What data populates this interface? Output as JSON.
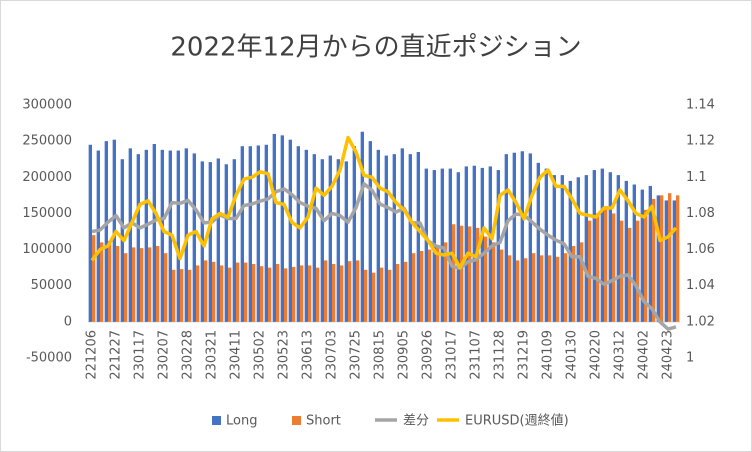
{
  "chart_data": {
    "type": "bar_line",
    "title": "2022年12月からの直近ポジション",
    "categories": [
      "221206",
      null,
      null,
      "221227",
      null,
      null,
      "230117",
      null,
      null,
      "230207",
      null,
      null,
      "230228",
      null,
      null,
      "230321",
      null,
      null,
      "230411",
      null,
      null,
      "230502",
      null,
      null,
      "230523",
      null,
      null,
      "230613",
      null,
      null,
      "230703",
      null,
      null,
      "230725",
      null,
      null,
      "230815",
      null,
      null,
      "230905",
      null,
      null,
      "230926",
      null,
      null,
      "231017",
      null,
      null,
      "231107",
      null,
      null,
      "231128",
      null,
      null,
      "231219",
      null,
      null,
      "240109",
      null,
      null,
      "240130",
      null,
      null,
      "240220",
      null,
      null,
      "240312",
      null,
      null,
      "240402",
      null,
      null,
      "240423",
      null
    ],
    "series": [
      {
        "name": "Long",
        "color": "#4472c4",
        "kind": "bar",
        "values": [
          245000,
          237000,
          250000,
          252000,
          225000,
          240000,
          232000,
          238000,
          246000,
          238000,
          237000,
          237000,
          240000,
          233000,
          222000,
          221000,
          226000,
          218000,
          225000,
          243000,
          243000,
          244000,
          245000,
          260000,
          258000,
          252000,
          243000,
          238000,
          232000,
          225000,
          230000,
          225000,
          222000,
          243000,
          263000,
          250000,
          238000,
          230000,
          232000,
          240000,
          232000,
          235000,
          212000,
          210000,
          212000,
          212000,
          207000,
          215000,
          216000,
          213000,
          215000,
          210000,
          232000,
          234000,
          236000,
          233000,
          220000,
          212000,
          203000,
          203000,
          195000,
          200000,
          203000,
          210000,
          212000,
          207000,
          203000,
          195000,
          190000,
          183000,
          188000,
          175000,
          168000,
          168000
        ]
      },
      {
        "name": "Short",
        "color": "#ed7d31",
        "kind": "bar",
        "values": [
          120000,
          110000,
          112000,
          105000,
          95000,
          103000,
          102000,
          103000,
          105000,
          95000,
          72000,
          73000,
          72000,
          78000,
          85000,
          83000,
          78000,
          75000,
          82000,
          82000,
          80000,
          77000,
          75000,
          80000,
          74000,
          76000,
          78000,
          78000,
          75000,
          85000,
          80000,
          78000,
          84000,
          85000,
          72000,
          68000,
          75000,
          72000,
          80000,
          83000,
          95000,
          98000,
          100000,
          105000,
          110000,
          135000,
          133000,
          132000,
          130000,
          118000,
          110000,
          100000,
          92000,
          85000,
          88000,
          95000,
          92000,
          92000,
          90000,
          95000,
          105000,
          110000,
          140000,
          150000,
          160000,
          150000,
          140000,
          130000,
          140000,
          155000,
          170000,
          175000,
          178000,
          175000
        ]
      },
      {
        "name": "差分",
        "color": "#a5a5a5",
        "kind": "line",
        "values": [
          125000,
          127000,
          138000,
          147000,
          130000,
          137000,
          130000,
          135000,
          141000,
          143000,
          165000,
          164000,
          168000,
          155000,
          137000,
          138000,
          148000,
          143000,
          143000,
          161000,
          163000,
          167000,
          170000,
          180000,
          184000,
          176000,
          165000,
          160000,
          157000,
          140000,
          150000,
          147000,
          138000,
          158000,
          191000,
          182000,
          163000,
          158000,
          152000,
          157000,
          137000,
          137000,
          112000,
          105000,
          102000,
          77000,
          74000,
          83000,
          86000,
          95000,
          105000,
          110000,
          140000,
          149000,
          148000,
          138000,
          128000,
          120000,
          113000,
          108000,
          90000,
          90000,
          63000,
          60000,
          52000,
          57000,
          63000,
          65000,
          50000,
          28000,
          18000,
          0,
          -10000,
          -7000
        ]
      },
      {
        "name": "EURUSD(週終値)",
        "color": "#ffc000",
        "kind": "line",
        "axis": "y2",
        "values": [
          1.054,
          1.06,
          1.062,
          1.07,
          1.065,
          1.075,
          1.085,
          1.087,
          1.08,
          1.07,
          1.068,
          1.055,
          1.068,
          1.07,
          1.062,
          1.077,
          1.08,
          1.078,
          1.09,
          1.099,
          1.1,
          1.103,
          1.102,
          1.086,
          1.085,
          1.075,
          1.072,
          1.078,
          1.094,
          1.09,
          1.095,
          1.104,
          1.122,
          1.114,
          1.101,
          1.1,
          1.094,
          1.092,
          1.086,
          1.082,
          1.075,
          1.07,
          1.065,
          1.058,
          1.057,
          1.058,
          1.05,
          1.058,
          1.056,
          1.072,
          1.066,
          1.09,
          1.093,
          1.086,
          1.077,
          1.09,
          1.1,
          1.104,
          1.095,
          1.095,
          1.088,
          1.08,
          1.079,
          1.078,
          1.083,
          1.083,
          1.093,
          1.087,
          1.08,
          1.078,
          1.084,
          1.065,
          1.067,
          1.072
        ]
      }
    ],
    "ylim": [
      -50000,
      300000
    ],
    "yticks": [
      -50000,
      0,
      50000,
      100000,
      150000,
      200000,
      250000,
      300000
    ],
    "y2lim": [
      1,
      1.14
    ],
    "y2ticks": [
      1,
      1.02,
      1.04,
      1.06,
      1.08,
      1.1,
      1.12,
      1.14
    ],
    "legend": "bottom"
  }
}
